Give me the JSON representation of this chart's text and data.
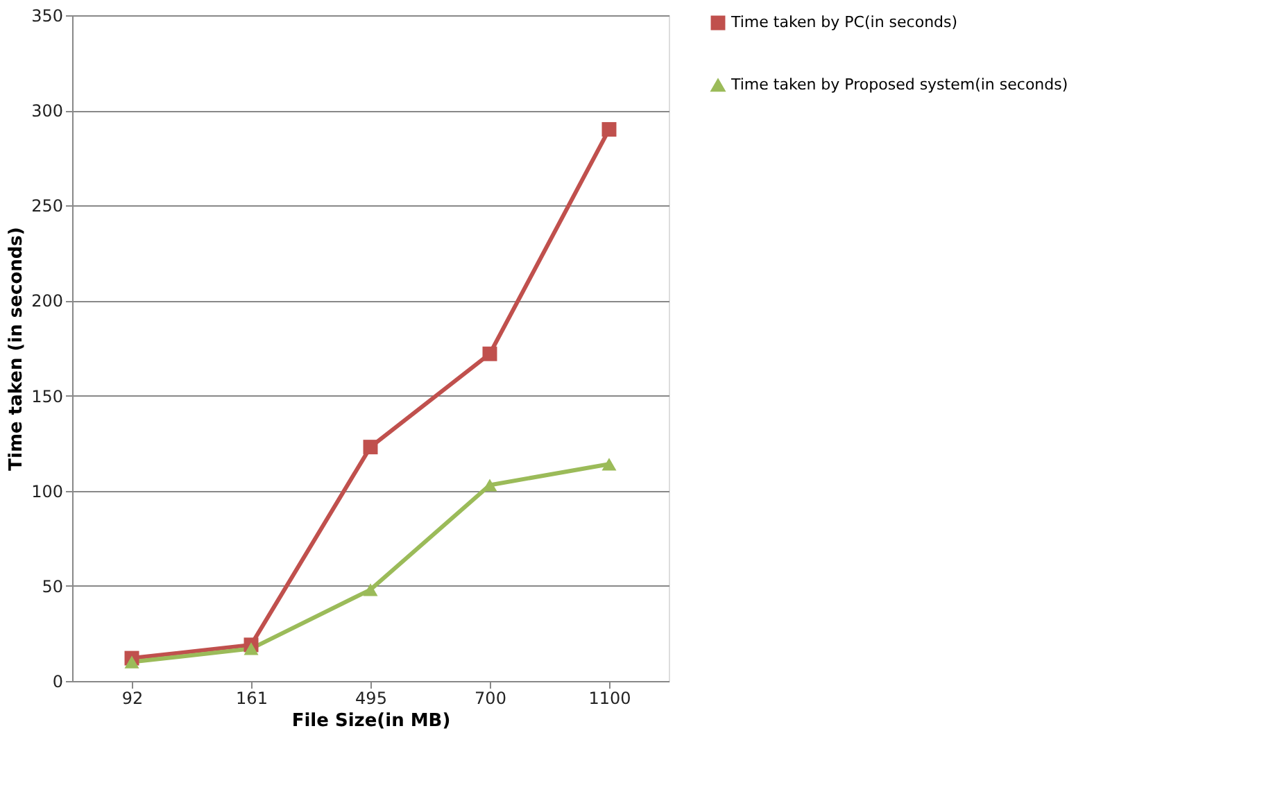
{
  "chart_data": {
    "type": "line",
    "xlabel": "File Size(in  MB)",
    "ylabel": "Time taken  (in seconds)",
    "categories": [
      "92",
      "161",
      "495",
      "700",
      "1100"
    ],
    "series": [
      {
        "name": "Time taken by PC(in seconds)",
        "color": "#c0504d",
        "marker": "square",
        "values": [
          12,
          19,
          123,
          172,
          290
        ]
      },
      {
        "name": "Time taken by Proposed system(in seconds)",
        "color": "#9bbb59",
        "marker": "triangle",
        "values": [
          10,
          17,
          48,
          103,
          114
        ]
      }
    ],
    "ylim": [
      0,
      350
    ],
    "yticks": [
      0,
      50,
      100,
      150,
      200,
      250,
      300,
      350
    ],
    "grid": "y",
    "legend": "right",
    "line_style": "solid"
  }
}
